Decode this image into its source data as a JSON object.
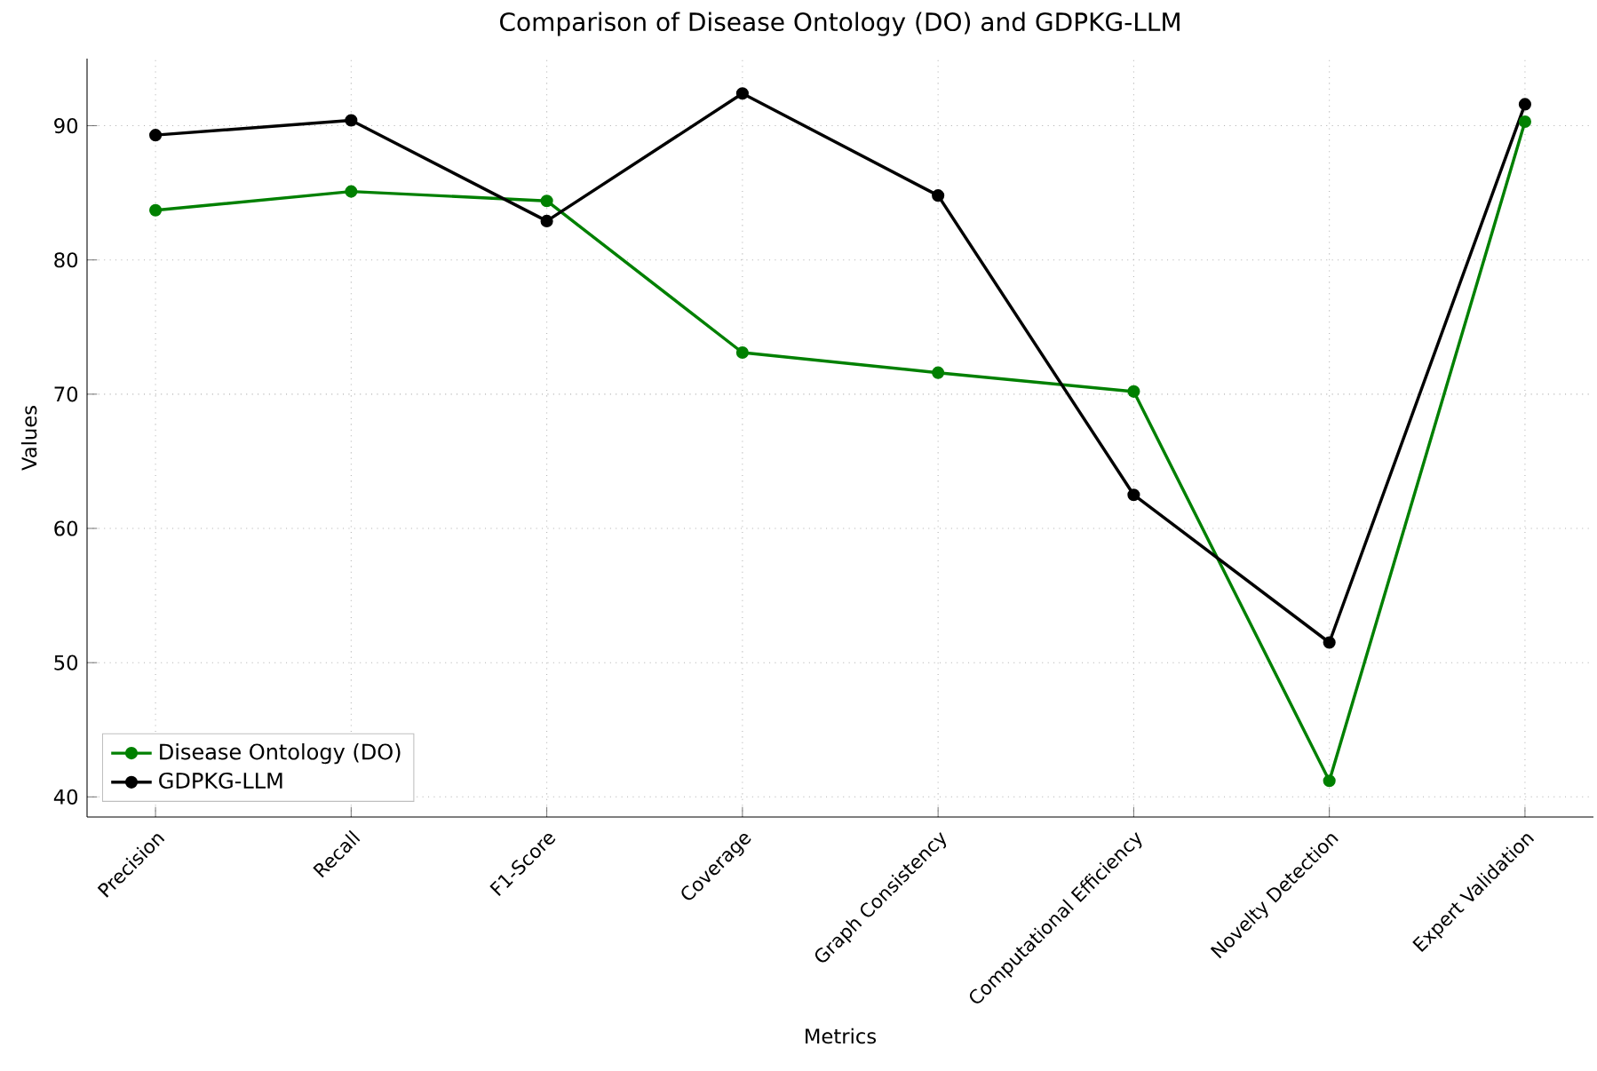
{
  "chart_data": {
    "type": "line",
    "title": "Comparison of Disease Ontology (DO) and GDPKG-LLM",
    "xlabel": "Metrics",
    "ylabel": "Values",
    "categories": [
      "Precision",
      "Recall",
      "F1-Score",
      "Coverage",
      "Graph Consistency",
      "Computational Efficiency",
      "Novelty Detection",
      "Expert Validation"
    ],
    "series": [
      {
        "name": "Disease Ontology (DO)",
        "color": "#008000",
        "values": [
          83.7,
          85.1,
          84.4,
          73.1,
          71.6,
          70.2,
          41.2,
          90.3
        ]
      },
      {
        "name": "GDPKG-LLM",
        "color": "#000000",
        "values": [
          89.3,
          90.4,
          82.9,
          92.4,
          84.8,
          62.5,
          51.5,
          91.6
        ]
      }
    ],
    "ylim": [
      38.5,
      95
    ],
    "yticks": [
      40,
      50,
      60,
      70,
      80,
      90
    ],
    "grid": true,
    "legend": "bottom left",
    "marker": "circle",
    "line_style": "solid"
  }
}
